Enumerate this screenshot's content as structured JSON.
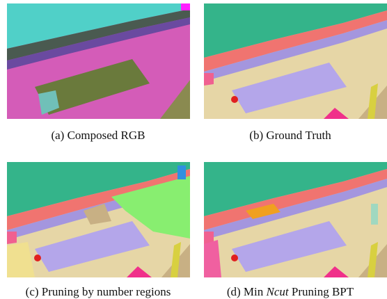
{
  "panels": [
    {
      "caption": "(a) Composed RGB"
    },
    {
      "caption": "(b) Ground Truth"
    },
    {
      "caption": "(c) Pruning by number regions"
    },
    {
      "caption": [
        "(d) Min ",
        "Ncut",
        " Pruning BPT"
      ]
    }
  ]
}
